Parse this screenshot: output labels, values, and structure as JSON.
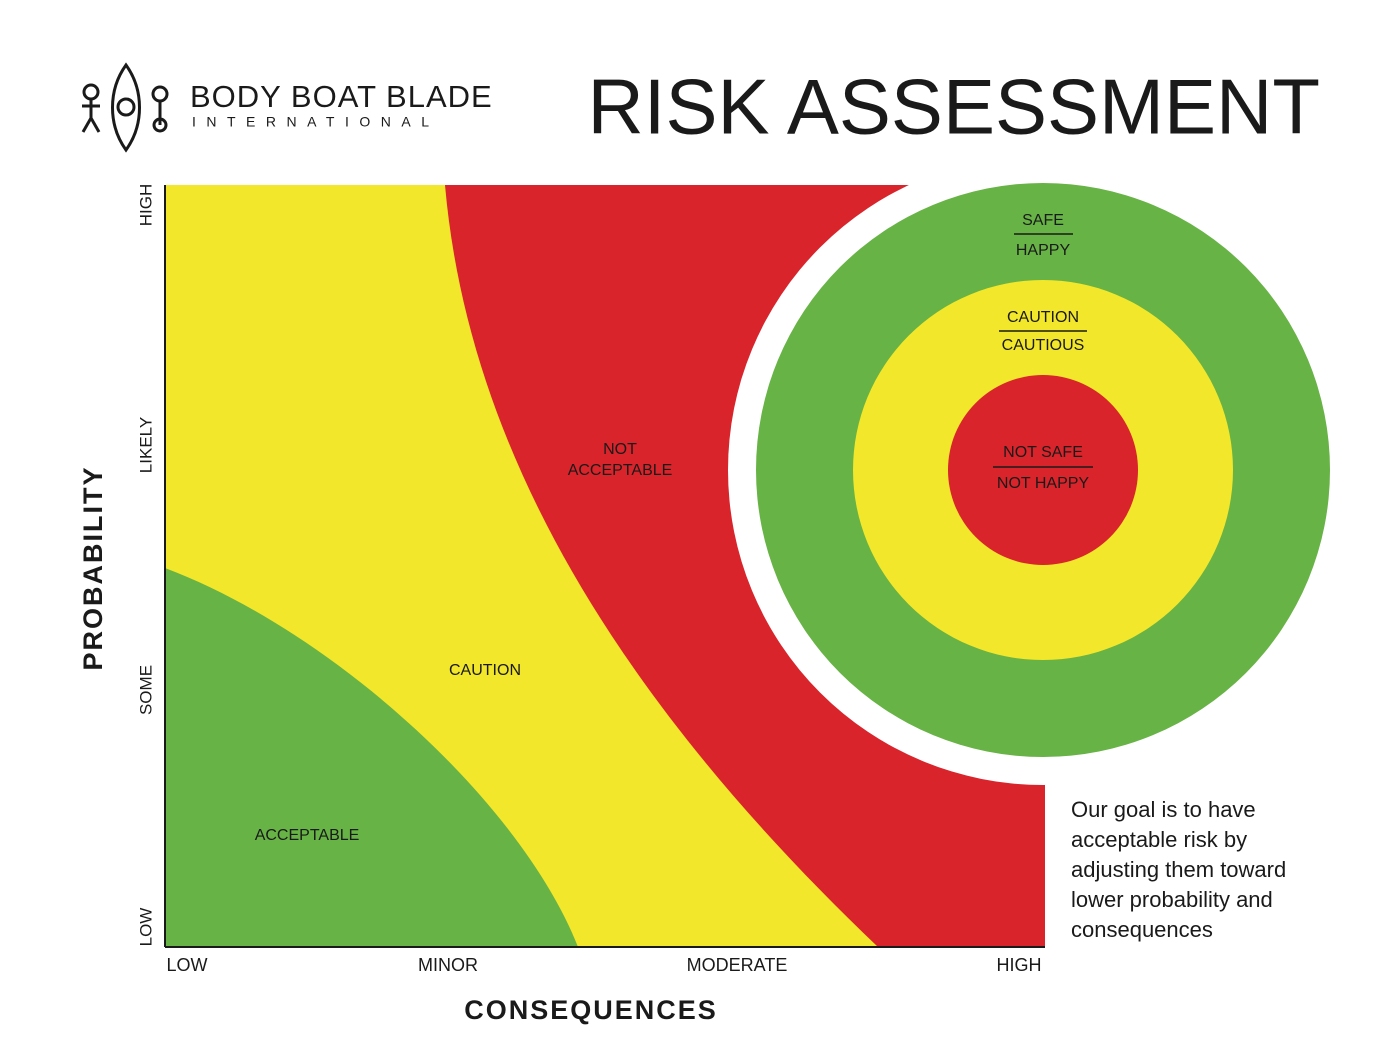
{
  "logo": {
    "name": "BODY BOAT BLADE",
    "subtitle": "INTERNATIONAL"
  },
  "title": "RISK ASSESSMENT",
  "y_axis": {
    "label": "PROBABILITY",
    "ticks": [
      "LOW",
      "SOME",
      "LIKELY",
      "HIGH"
    ]
  },
  "x_axis": {
    "label": "CONSEQUENCES",
    "ticks": [
      "LOW",
      "MINOR",
      "MODERATE",
      "HIGH"
    ]
  },
  "zones": [
    "ACCEPTABLE",
    "CAUTION",
    "NOT ACCEPTABLE"
  ],
  "target": [
    {
      "top": "SAFE",
      "bottom": "HAPPY"
    },
    {
      "top": "CAUTION",
      "bottom": "CAUTIOUS"
    },
    {
      "top": "NOT SAFE",
      "bottom": "NOT HAPPY"
    }
  ],
  "note": "Our goal is to have acceptable risk by adjusting them toward lower probability and consequences"
}
